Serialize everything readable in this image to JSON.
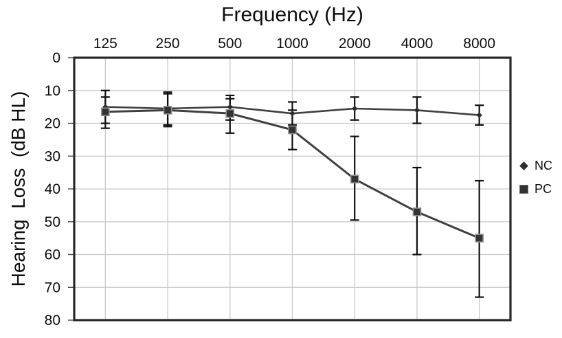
{
  "chart_data": {
    "type": "line",
    "title": "",
    "xlabel": "Frequency (Hz)",
    "ylabel": "Hearing  Loss  (dB HL)",
    "categories": [
      "125",
      "250",
      "500",
      "1000",
      "2000",
      "4000",
      "8000"
    ],
    "y_ticks": [
      "0",
      "10",
      "20",
      "30",
      "40",
      "50",
      "60",
      "70",
      "80"
    ],
    "ylim": [
      0,
      80
    ],
    "y_axis_inverted": true,
    "grid": true,
    "legend_position": "right-outside",
    "series": [
      {
        "name": "NC",
        "marker": "diamond",
        "values": [
          15,
          15.5,
          15,
          17,
          15.5,
          16,
          17.5
        ],
        "err_upper": [
          10,
          10.5,
          11.5,
          13.5,
          12,
          12,
          14.5
        ],
        "err_lower": [
          20,
          20.5,
          19,
          20.5,
          19,
          20,
          20.5
        ]
      },
      {
        "name": "PC",
        "marker": "square",
        "values": [
          16.5,
          16,
          17,
          22,
          37,
          47,
          55
        ],
        "err_upper": [
          12,
          11,
          12.5,
          16,
          24,
          33.5,
          37.5
        ],
        "err_lower": [
          21.5,
          21,
          23,
          28,
          49.5,
          60,
          73
        ]
      }
    ],
    "colors": {
      "line": "#3f3f3f",
      "marker_fill": "#333333",
      "marker_edge": "#909090",
      "error_bar": "#0f0f0f",
      "grid": "#c9c9c9",
      "axis": "#272727",
      "text": "#0d0d0d"
    }
  }
}
